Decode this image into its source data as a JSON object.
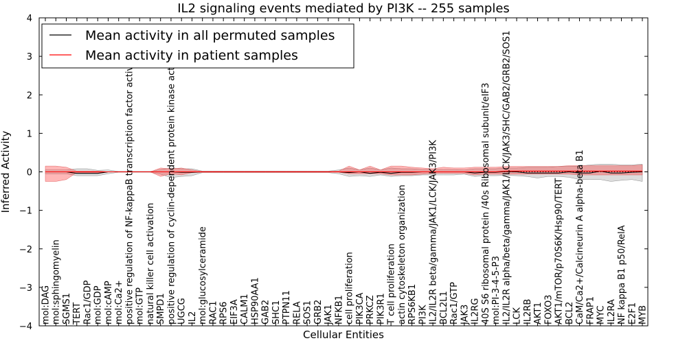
{
  "chart_data": {
    "type": "line",
    "title": "IL2 signaling events mediated by PI3K -- 255 samples",
    "xlabel": "Cellular Entities",
    "ylabel": "Inferred Activity",
    "ylim": [
      -4,
      4
    ],
    "yticks": [
      -4,
      -3,
      -2,
      -1,
      0,
      1,
      2,
      3,
      4
    ],
    "ytick_labels": [
      "−4",
      "−3",
      "−2",
      "−1",
      "0",
      "1",
      "2",
      "3",
      "4"
    ],
    "legend_position": "top-left",
    "categories": [
      "mol:DAG",
      "mol:sphingomyelin",
      "SGMS1",
      "TERT",
      "Rac1/GDP",
      "mol:GDP",
      "mol:cAMP",
      "mol:Ca2+",
      "positive regulation of NF-kappaB transcription factor activity",
      "mol:GTP",
      "natural killer cell activation",
      "SMPD1",
      "positive regulation of cyclin-dependent protein kinase activity",
      "UGCG",
      "IL2",
      "mol:glucosylceramide",
      "RAC1",
      "RPS6",
      "EIF3A",
      "CALM1",
      "HSP90AA1",
      "GAB2",
      "SHC1",
      "PTPN11",
      "RELA",
      "SOS1",
      "GRB2",
      "JAK1",
      "NFKB1",
      "cell proliferation",
      "PIK3CA",
      "PRKCZ",
      "PIK3R1",
      "T cell proliferation",
      "actin cytoskeleton organization",
      "RPS6KB1",
      "PI3K",
      "IL2/IL2R beta/gamma/JAK1/LCK/JAK3/PI3K",
      "BCL2L1",
      "Rac1/GTP",
      "JAK3",
      "IL2RG",
      "40S S6 ribosomal protein /40s Ribosomal subunit/eIF3",
      "mol:PI-3-4-5-P3",
      "IL2/IL2R alpha/beta/gamma/JAK1/LCK/JAK3/SHC/GAB2/GRB2/SOS1",
      "LCK",
      "IL2RB",
      "AKT1",
      "FOXO3",
      "AKT1/mTOR/p70S6K/Hsp90/TERT",
      "BCL2",
      "CaM/Ca2+/Calcineurin A alpha-beta B1",
      "FRAP1",
      "MYC",
      "IL2RA",
      "NF kappa B1 p50/RelA",
      "E2F1",
      "MYB"
    ],
    "series": [
      {
        "name": "Mean activity in all permuted samples",
        "color": "#000000",
        "values": [
          0.0,
          0.0,
          0.0,
          -0.04,
          -0.04,
          -0.04,
          0.0,
          0.0,
          0.0,
          0.0,
          0.0,
          0.0,
          0.0,
          -0.01,
          -0.01,
          0.0,
          0.0,
          0.0,
          0.0,
          0.0,
          0.0,
          0.0,
          0.0,
          0.0,
          0.0,
          0.0,
          0.0,
          0.0,
          0.0,
          -0.02,
          0.0,
          -0.04,
          -0.01,
          -0.04,
          -0.01,
          -0.01,
          0.0,
          0.0,
          0.0,
          0.0,
          0.0,
          -0.03,
          -0.01,
          -0.01,
          0.01,
          0.0,
          -0.03,
          -0.03,
          -0.03,
          -0.03,
          0.0,
          -0.03,
          -0.03,
          0.02,
          -0.03,
          -0.03,
          -0.01,
          0.0
        ],
        "lower": [
          -0.05,
          -0.05,
          -0.05,
          -0.1,
          -0.1,
          -0.1,
          -0.05,
          -0.01,
          -0.01,
          -0.01,
          -0.01,
          -0.06,
          -0.15,
          -0.12,
          -0.1,
          -0.02,
          -0.02,
          -0.02,
          -0.02,
          -0.02,
          -0.02,
          -0.02,
          -0.02,
          -0.02,
          -0.02,
          -0.02,
          -0.02,
          -0.02,
          -0.05,
          -0.12,
          -0.1,
          -0.12,
          -0.08,
          -0.12,
          -0.1,
          -0.1,
          -0.08,
          -0.08,
          -0.08,
          -0.08,
          -0.06,
          -0.12,
          -0.1,
          -0.1,
          -0.09,
          -0.1,
          -0.12,
          -0.16,
          -0.12,
          -0.12,
          -0.14,
          -0.2,
          -0.2,
          -0.2,
          -0.25,
          -0.22,
          -0.2,
          -0.25
        ],
        "upper": [
          0.05,
          0.05,
          0.05,
          0.08,
          0.08,
          0.04,
          0.05,
          0.01,
          0.01,
          0.01,
          0.01,
          0.06,
          0.1,
          0.08,
          0.08,
          0.02,
          0.02,
          0.02,
          0.02,
          0.02,
          0.02,
          0.02,
          0.02,
          0.02,
          0.02,
          0.02,
          0.02,
          0.02,
          0.05,
          0.1,
          0.05,
          0.1,
          0.05,
          0.1,
          0.08,
          0.08,
          0.06,
          0.06,
          0.06,
          0.06,
          0.05,
          0.08,
          0.08,
          0.08,
          0.1,
          0.1,
          0.12,
          0.12,
          0.12,
          0.14,
          0.14,
          0.15,
          0.18,
          0.2,
          0.2,
          0.18,
          0.18,
          0.2
        ]
      },
      {
        "name": "Mean activity in patient samples",
        "color": "#ff0000",
        "values": [
          0.0,
          0.0,
          0.0,
          0.0,
          0.0,
          0.0,
          0.0,
          0.0,
          0.0,
          0.0,
          0.0,
          0.0,
          0.0,
          0.0,
          0.0,
          0.0,
          0.0,
          0.0,
          0.0,
          0.0,
          0.0,
          0.0,
          0.0,
          0.0,
          0.0,
          0.0,
          0.0,
          0.0,
          0.0,
          0.0,
          0.0,
          0.0,
          0.0,
          0.0,
          0.0,
          0.0,
          0.0,
          0.0,
          0.0,
          0.0,
          0.0,
          0.0,
          0.0,
          0.0,
          0.02,
          0.02,
          0.02,
          0.02,
          0.02,
          0.02,
          0.02,
          0.02,
          0.02,
          0.02,
          0.02,
          0.02,
          0.02,
          0.02
        ],
        "lower": [
          -0.25,
          -0.25,
          -0.2,
          -0.02,
          -0.02,
          -0.02,
          0.0,
          0.0,
          0.0,
          0.0,
          0.0,
          -0.12,
          -0.05,
          -0.08,
          -0.02,
          -0.01,
          -0.01,
          -0.01,
          -0.01,
          -0.01,
          -0.01,
          -0.01,
          -0.01,
          -0.01,
          -0.01,
          -0.01,
          -0.01,
          -0.01,
          -0.01,
          -0.05,
          -0.05,
          -0.05,
          -0.05,
          -0.08,
          -0.08,
          -0.08,
          -0.06,
          -0.04,
          -0.04,
          -0.04,
          -0.04,
          -0.08,
          -0.06,
          -0.06,
          -0.06,
          -0.06,
          -0.06,
          -0.06,
          -0.06,
          -0.06,
          -0.06,
          -0.08,
          -0.08,
          -0.08,
          -0.08,
          -0.08,
          -0.08,
          -0.08
        ],
        "upper": [
          0.15,
          0.15,
          0.12,
          0.02,
          0.02,
          0.02,
          0.0,
          0.0,
          0.0,
          0.0,
          0.0,
          0.1,
          0.08,
          0.1,
          0.05,
          0.01,
          0.01,
          0.01,
          0.01,
          0.01,
          0.01,
          0.01,
          0.01,
          0.01,
          0.01,
          0.01,
          0.01,
          0.01,
          0.02,
          0.15,
          0.05,
          0.15,
          0.05,
          0.15,
          0.15,
          0.12,
          0.1,
          0.08,
          0.12,
          0.1,
          0.1,
          0.12,
          0.12,
          0.12,
          0.14,
          0.14,
          0.14,
          0.14,
          0.14,
          0.14,
          0.16,
          0.16,
          0.16,
          0.16,
          0.16,
          0.16,
          0.16,
          0.18
        ]
      }
    ],
    "null_line": 0
  }
}
